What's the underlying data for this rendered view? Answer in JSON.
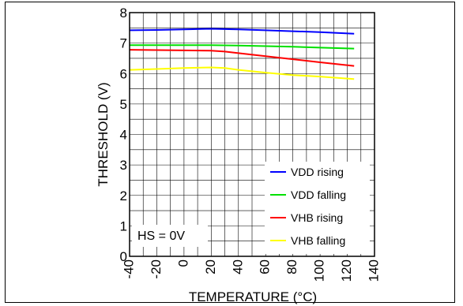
{
  "chart_data": {
    "type": "line",
    "title": "",
    "xlabel": "TEMPERATURE (°C)",
    "ylabel": "THRESHOLD (V)",
    "xlim": [
      -40,
      140
    ],
    "ylim": [
      0,
      8
    ],
    "x_ticks": [
      "-40",
      "-20",
      "0",
      "20",
      "40",
      "60",
      "80",
      "100",
      "120",
      "140"
    ],
    "y_ticks": [
      "0",
      "1",
      "2",
      "3",
      "4",
      "5",
      "6",
      "7",
      "8"
    ],
    "grid": true,
    "legend_position": "bottom-right",
    "annotation": "HS = 0V",
    "series": [
      {
        "name": "VDD rising",
        "color": "#0000ff",
        "x": [
          -40,
          -20,
          0,
          20,
          40,
          60,
          80,
          100,
          125
        ],
        "y": [
          7.42,
          7.43,
          7.45,
          7.47,
          7.45,
          7.42,
          7.39,
          7.36,
          7.31
        ]
      },
      {
        "name": "VDD falling",
        "color": "#00e000",
        "x": [
          -40,
          -20,
          0,
          20,
          40,
          60,
          80,
          100,
          125
        ],
        "y": [
          6.93,
          6.93,
          6.93,
          6.93,
          6.92,
          6.9,
          6.88,
          6.85,
          6.82
        ]
      },
      {
        "name": "VHB rising",
        "color": "#ff0000",
        "x": [
          -40,
          -20,
          0,
          20,
          30,
          40,
          60,
          80,
          100,
          125
        ],
        "y": [
          6.78,
          6.77,
          6.76,
          6.75,
          6.72,
          6.67,
          6.57,
          6.47,
          6.37,
          6.25
        ]
      },
      {
        "name": "VHB falling",
        "color": "#ffff00",
        "x": [
          -40,
          -20,
          0,
          20,
          30,
          40,
          60,
          80,
          100,
          125
        ],
        "y": [
          6.12,
          6.15,
          6.18,
          6.2,
          6.18,
          6.12,
          6.03,
          5.95,
          5.9,
          5.82
        ]
      }
    ]
  }
}
